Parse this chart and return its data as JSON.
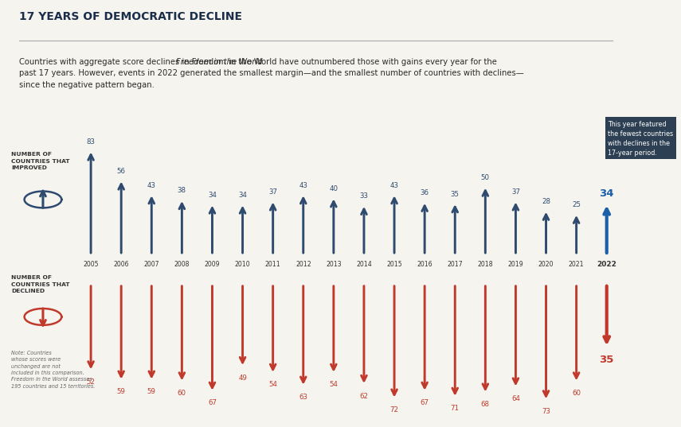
{
  "title": "17 YEARS OF DEMOCRATIC DECLINE",
  "subtitle_normal1": "Countries with aggregate score declines in ",
  "subtitle_italic": "Freedom in the World",
  "subtitle_normal2": " have outnumbered those with gains every year for the\npast 17 years. However, events in 2022 generated the smallest margin—and the smallest number of countries with declines—\nsince the negative pattern began.",
  "years": [
    2005,
    2006,
    2007,
    2008,
    2009,
    2010,
    2011,
    2012,
    2013,
    2014,
    2015,
    2016,
    2017,
    2018,
    2019,
    2020,
    2021,
    2022
  ],
  "improved": [
    83,
    56,
    43,
    38,
    34,
    34,
    37,
    43,
    40,
    33,
    43,
    36,
    35,
    50,
    37,
    28,
    25,
    34
  ],
  "declined": [
    52,
    59,
    59,
    60,
    67,
    49,
    54,
    63,
    54,
    62,
    72,
    67,
    71,
    68,
    64,
    73,
    60,
    35
  ],
  "improved_color": "#2e4a6e",
  "improved_color_2022": "#1a5fa8",
  "declined_color": "#c0392b",
  "bg_color": "#f5f4ef",
  "bottom_bg": "#e8e4d8",
  "annotation_box_color": "#2d3f52",
  "annotation_text": "This year featured\nthe fewest countries\nwith declines in the\n17-year period.",
  "label_improved": "NUMBER OF\nCOUNTRIES THAT\nIMPROVED",
  "label_declined": "NUMBER OF\nCOUNTRIES THAT\nDECLINED",
  "note_text": "Note: Countries\nwhose scores were\nunchanged are not\nincluded in this comparison.\nFreedom in the World assesses\n195 countries and 15 territories."
}
